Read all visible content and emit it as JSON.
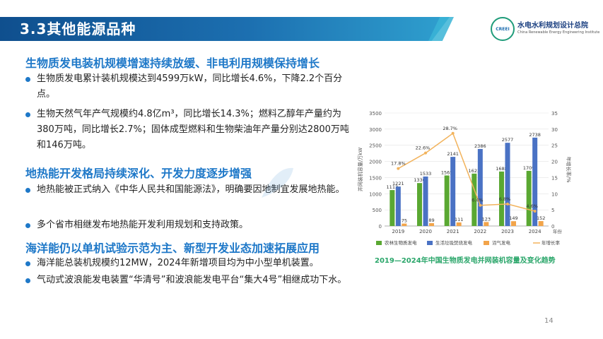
{
  "header": {
    "title": "3.3其他能源品种"
  },
  "logo": {
    "mark": "CREEI",
    "name_cn": "水电水利规划设计总院",
    "name_en": "China Renewable Energy Engineering Institute"
  },
  "sections": [
    {
      "heading": "生物质发电装机规模增速持续放缓、非电利用规模保持增长",
      "bullets": [
        "生物质发电累计装机规模达到4599万kW，同比增长4.6%，下降2.2个百分点。",
        "生物天然气年产气规模约4.8亿m³，同比增长14.3%；燃料乙醇年产量约为380万吨，同比增长2.7%；固体成型燃料和生物柴油年产量分别达2800万吨和146万吨。"
      ]
    },
    {
      "heading": "地热能开发格局持续深化、开发力度逐步增强",
      "bullets": [
        "地热能被正式纳入《中华人民共和国能源法》，明确要因地制宜发展地热能。",
        "多个省市相继发布地热能开发利用规划和支持政策。"
      ]
    },
    {
      "heading": "海洋能仍以单机试验示范为主、新型开发业态加速拓展应用",
      "bullets": [
        "海洋能总装机规模约12MW，2024年新增项目均为中小型单机装置。",
        "气动式波浪能发电装置“华清号”和波浪能发电平台“集大4号”相继成功下水。"
      ]
    }
  ],
  "chart_caption": "2019—2024年中国生物质发电并网装机容量及变化趋势",
  "page_number": "14",
  "colors": {
    "agri": "#5aa832",
    "waste": "#4a72c4",
    "biogas": "#f2a44a",
    "growth": "#f2b35c",
    "section": "#1e78c8"
  },
  "chart_data": {
    "type": "bar",
    "categories": [
      "2019",
      "2020",
      "2021",
      "2022",
      "2023",
      "2024"
    ],
    "x_unit": "年份",
    "ylabel_left": "并网装机容量/万kW",
    "ylabel_right": "年增长率/%",
    "ylim_left": [
      0,
      3500
    ],
    "ylim_right": [
      0,
      35
    ],
    "left_ticks": [
      "0",
      "500",
      "1000",
      "1500",
      "2000",
      "2500",
      "3000",
      "3500"
    ],
    "right_ticks": [
      "0",
      "5",
      "10",
      "15",
      "20",
      "25",
      "30",
      "35"
    ],
    "series": [
      {
        "name": "农林生物质发电",
        "values": [
          1113,
          1330,
          1565,
          1623,
          1688,
          1709
        ],
        "labels": [
          "1113",
          "1330",
          "1565",
          "1623",
          "1688",
          "1709"
        ]
      },
      {
        "name": "生活垃圾焚烧发电",
        "values": [
          1221,
          1533,
          2141,
          2386,
          2577,
          2738
        ],
        "labels": [
          "1221",
          "1533",
          "2141",
          "2386",
          "2577",
          "2738"
        ]
      },
      {
        "name": "沼气发电",
        "values": [
          75,
          89,
          111,
          123,
          149,
          152
        ],
        "labels": [
          "75",
          "89",
          "111",
          "123",
          "149",
          "152"
        ]
      },
      {
        "name": "年增长率",
        "axis": "right",
        "values": [
          17.8,
          22.6,
          28.7,
          6.4,
          6.8,
          4.6
        ],
        "labels": [
          "17.8%",
          "22.6%",
          "28.7%",
          "6.4%",
          "6.8%",
          "4.6%"
        ]
      }
    ]
  }
}
